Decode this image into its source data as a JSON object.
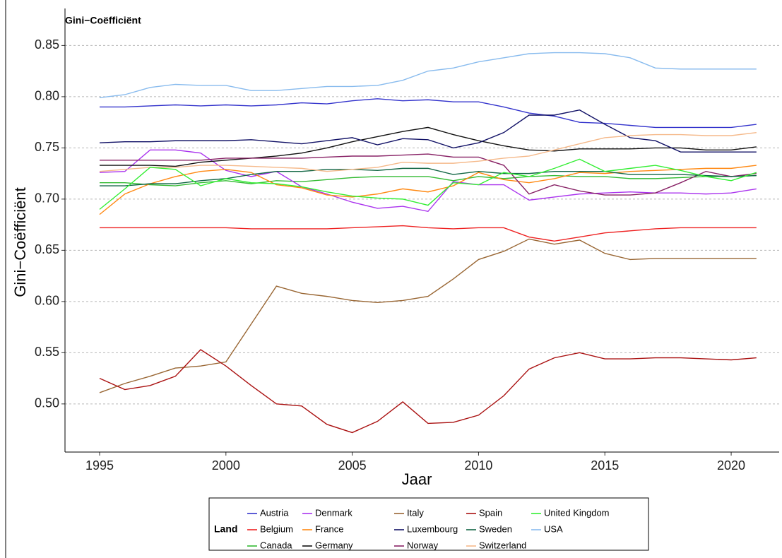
{
  "chart_data": {
    "type": "line",
    "title": "Gini−Coëfficiënt",
    "x_label": "Jaar",
    "y_label": "Gini−Coëfficiënt",
    "legend_title": "Land",
    "x": [
      1995,
      1996,
      1997,
      1998,
      1999,
      2000,
      2001,
      2002,
      2003,
      2004,
      2005,
      2006,
      2007,
      2008,
      2009,
      2010,
      2011,
      2012,
      2013,
      2014,
      2015,
      2016,
      2017,
      2018,
      2019,
      2020,
      2021
    ],
    "xlim": [
      1993.63,
      2021.9
    ],
    "xticks": [
      1995,
      2000,
      2005,
      2010,
      2015,
      2020
    ],
    "ylim": [
      0.453,
      0.862
    ],
    "yticks": [
      {
        "value": 0.5,
        "label": "0.50"
      },
      0.55,
      {
        "value": 0.6,
        "label": "0.60"
      },
      0.65,
      {
        "value": 0.7,
        "label": "0.70"
      },
      0.75,
      {
        "value": 0.8,
        "label": "0.80"
      },
      0.85
    ],
    "grid": true,
    "series": [
      {
        "name": "Austria",
        "color": "#3333cc",
        "values": [
          0.79,
          0.79,
          0.791,
          0.792,
          0.791,
          0.792,
          0.791,
          0.792,
          0.794,
          0.793,
          0.796,
          0.798,
          0.796,
          0.797,
          0.795,
          0.795,
          0.79,
          0.784,
          0.781,
          0.775,
          0.774,
          0.772,
          0.77,
          0.77,
          0.77,
          0.77,
          0.773
        ]
      },
      {
        "name": "Belgium",
        "color": "#ee2222",
        "values": [
          0.672,
          0.672,
          0.672,
          0.672,
          0.672,
          0.672,
          0.671,
          0.671,
          0.671,
          0.671,
          0.672,
          0.673,
          0.674,
          0.672,
          0.671,
          0.672,
          0.672,
          0.663,
          0.659,
          0.663,
          0.667,
          0.669,
          0.671,
          0.672,
          0.672,
          0.672,
          0.672
        ]
      },
      {
        "name": "Canada",
        "color": "#33bb33",
        "values": [
          0.716,
          0.716,
          0.714,
          0.713,
          0.716,
          0.718,
          0.715,
          0.718,
          0.717,
          0.719,
          0.721,
          0.722,
          0.722,
          0.722,
          0.718,
          0.722,
          0.72,
          0.722,
          0.723,
          0.722,
          0.722,
          0.72,
          0.72,
          0.721,
          0.722,
          0.722,
          0.723
        ]
      },
      {
        "name": "Denmark",
        "color": "#aa33ee",
        "values": [
          0.726,
          0.727,
          0.748,
          0.748,
          0.745,
          0.728,
          0.722,
          0.727,
          0.712,
          0.705,
          0.697,
          0.691,
          0.693,
          0.688,
          0.717,
          0.714,
          0.714,
          0.699,
          0.702,
          0.705,
          0.706,
          0.707,
          0.706,
          0.706,
          0.705,
          0.706,
          0.71
        ]
      },
      {
        "name": "France",
        "color": "#ff8811",
        "values": [
          0.685,
          0.705,
          0.715,
          0.722,
          0.727,
          0.729,
          0.726,
          0.714,
          0.711,
          0.704,
          0.702,
          0.705,
          0.71,
          0.707,
          0.713,
          0.726,
          0.719,
          0.716,
          0.72,
          0.726,
          0.725,
          0.727,
          0.728,
          0.729,
          0.73,
          0.73,
          0.733
        ]
      },
      {
        "name": "Germany",
        "color": "#111111",
        "values": [
          0.733,
          0.733,
          0.733,
          0.732,
          0.736,
          0.738,
          0.74,
          0.742,
          0.745,
          0.75,
          0.756,
          0.761,
          0.766,
          0.77,
          0.763,
          0.757,
          0.752,
          0.748,
          0.747,
          0.749,
          0.749,
          0.749,
          0.75,
          0.75,
          0.748,
          0.748,
          0.751
        ]
      },
      {
        "name": "Italy",
        "color": "#996633",
        "values": [
          0.511,
          0.52,
          0.527,
          0.535,
          0.537,
          0.541,
          0.578,
          0.615,
          0.608,
          0.605,
          0.601,
          0.599,
          0.601,
          0.605,
          0.622,
          0.641,
          0.649,
          0.661,
          0.656,
          0.66,
          0.647,
          0.641,
          0.642,
          0.642,
          0.642,
          0.642,
          0.642
        ]
      },
      {
        "name": "Luxembourg",
        "color": "#111166",
        "values": [
          0.755,
          0.756,
          0.756,
          0.757,
          0.757,
          0.757,
          0.758,
          0.756,
          0.754,
          0.757,
          0.76,
          0.753,
          0.759,
          0.758,
          0.75,
          0.755,
          0.765,
          0.782,
          0.782,
          0.787,
          0.773,
          0.76,
          0.757,
          0.746,
          0.746,
          0.746,
          0.746
        ]
      },
      {
        "name": "Norway",
        "color": "#882266",
        "values": [
          0.738,
          0.738,
          0.738,
          0.738,
          0.738,
          0.74,
          0.74,
          0.74,
          0.74,
          0.741,
          0.742,
          0.742,
          0.743,
          0.744,
          0.741,
          0.741,
          0.733,
          0.705,
          0.714,
          0.708,
          0.704,
          0.704,
          0.706,
          0.716,
          0.727,
          0.722,
          0.725
        ]
      },
      {
        "name": "Spain",
        "color": "#aa1111",
        "values": [
          0.525,
          0.514,
          0.518,
          0.527,
          0.553,
          0.537,
          0.518,
          0.5,
          0.498,
          0.48,
          0.472,
          0.483,
          0.502,
          0.481,
          0.482,
          0.489,
          0.508,
          0.534,
          0.545,
          0.55,
          0.544,
          0.544,
          0.545,
          0.545,
          0.544,
          0.543,
          0.545
        ]
      },
      {
        "name": "Sweden",
        "color": "#116644",
        "values": [
          0.713,
          0.713,
          0.715,
          0.715,
          0.718,
          0.72,
          0.724,
          0.727,
          0.727,
          0.729,
          0.729,
          0.728,
          0.73,
          0.73,
          0.724,
          0.727,
          0.725,
          0.725,
          0.727,
          0.727,
          0.727,
          0.724,
          0.724,
          0.724,
          0.723,
          0.722,
          0.723
        ]
      },
      {
        "name": "Switzerland",
        "color": "#f5b98a",
        "values": [
          0.727,
          0.729,
          0.731,
          0.731,
          0.733,
          0.733,
          0.732,
          0.731,
          0.73,
          0.727,
          0.729,
          0.731,
          0.736,
          0.735,
          0.735,
          0.737,
          0.74,
          0.742,
          0.748,
          0.754,
          0.76,
          0.762,
          0.763,
          0.763,
          0.762,
          0.762,
          0.765
        ]
      },
      {
        "name": "United Kingdom",
        "color": "#33ee33",
        "values": [
          0.69,
          0.71,
          0.731,
          0.729,
          0.713,
          0.72,
          0.716,
          0.715,
          0.712,
          0.707,
          0.703,
          0.701,
          0.7,
          0.694,
          0.716,
          0.714,
          0.726,
          0.722,
          0.73,
          0.739,
          0.727,
          0.73,
          0.733,
          0.728,
          0.722,
          0.718,
          0.726
        ]
      },
      {
        "name": "USA",
        "color": "#88bbee",
        "values": [
          0.799,
          0.802,
          0.809,
          0.812,
          0.811,
          0.811,
          0.806,
          0.806,
          0.808,
          0.81,
          0.81,
          0.811,
          0.816,
          0.825,
          0.828,
          0.834,
          0.838,
          0.842,
          0.843,
          0.843,
          0.842,
          0.838,
          0.828,
          0.827,
          0.827,
          0.827,
          0.827
        ]
      }
    ]
  }
}
